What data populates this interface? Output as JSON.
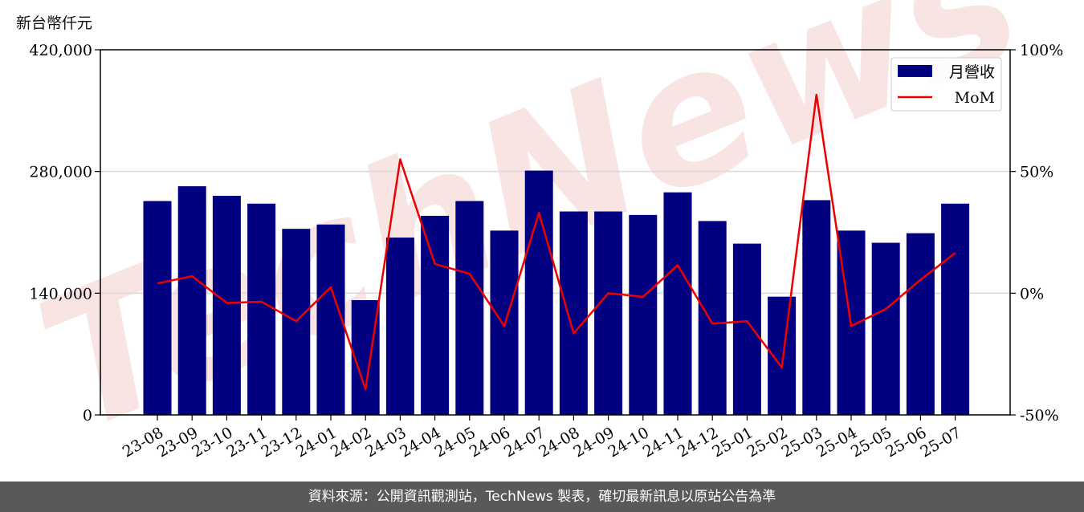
{
  "unit_label": "新台幣仟元",
  "watermark": "TechNews",
  "footer_text": "資料來源：公開資訊觀測站，TechNews 製表，確切最新訊息以原站公告為準",
  "colors": {
    "bar": "#000080",
    "line": "#ee0000",
    "grid": "#d9d9d9",
    "footer_bg": "#595959",
    "watermark": "#f2c4c4"
  },
  "chart_data": {
    "type": "bar",
    "categories": [
      "23-08",
      "23-09",
      "23-10",
      "23-11",
      "23-12",
      "24-01",
      "24-02",
      "24-03",
      "24-04",
      "24-05",
      "24-06",
      "24-07",
      "24-08",
      "24-09",
      "24-10",
      "24-11",
      "24-12",
      "25-01",
      "25-02",
      "25-03",
      "25-04",
      "25-05",
      "25-06",
      "25-07"
    ],
    "series": [
      {
        "name": "月營收",
        "type": "bar",
        "axis": "left",
        "values": [
          246000,
          263000,
          252000,
          243000,
          214000,
          219000,
          132000,
          204000,
          229000,
          246000,
          212000,
          281000,
          234000,
          234000,
          230000,
          256000,
          223000,
          197000,
          136000,
          247000,
          212000,
          198000,
          209000,
          243000
        ]
      },
      {
        "name": "MoM",
        "type": "line",
        "axis": "right",
        "values": [
          4,
          7,
          -4,
          -3.5,
          -11.5,
          2.5,
          -39.5,
          55,
          12,
          8,
          -13.5,
          33,
          -16.5,
          0,
          -1.5,
          11.5,
          -12.5,
          -11.5,
          -30.5,
          81.5,
          -13.5,
          -6.5,
          5.5,
          16.5
        ]
      }
    ],
    "y_left": {
      "lim": [
        0,
        420000
      ],
      "ticks": [
        "0",
        "140,000",
        "280,000",
        "420,000"
      ],
      "tick_values": [
        0,
        140000,
        280000,
        420000
      ]
    },
    "y_right": {
      "lim": [
        -50,
        100
      ],
      "ticks": [
        "-50%",
        "0%",
        "50%",
        "100%"
      ],
      "tick_values": [
        -50,
        0,
        50,
        100
      ]
    },
    "grid": "horizontal",
    "legend_position": "top-right"
  }
}
